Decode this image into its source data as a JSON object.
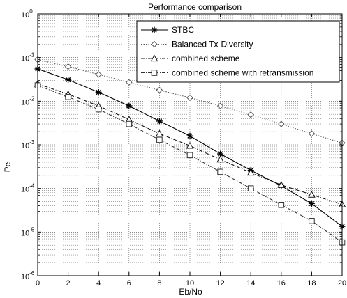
{
  "chart_data": {
    "type": "line",
    "title": "Performance comparison",
    "xlabel": "Eb/No",
    "ylabel": "Pe",
    "yscale": "log",
    "xlim": [
      0,
      20
    ],
    "ylim": [
      1e-06,
      1
    ],
    "grid": true,
    "legend_position": "top-right",
    "x_ticks": [
      "0",
      "2",
      "4",
      "6",
      "8",
      "10",
      "12",
      "14",
      "16",
      "18",
      "20"
    ],
    "y_ticks": [
      {
        "base": "10",
        "exp": "0"
      },
      {
        "base": "10",
        "exp": "-1"
      },
      {
        "base": "10",
        "exp": "-2"
      },
      {
        "base": "10",
        "exp": "-3"
      },
      {
        "base": "10",
        "exp": "-4"
      },
      {
        "base": "10",
        "exp": "-5"
      },
      {
        "base": "10",
        "exp": "-6"
      }
    ],
    "x": [
      0,
      2,
      4,
      6,
      8,
      10,
      12,
      14,
      16,
      18,
      20
    ],
    "series": [
      {
        "name": "STBC",
        "marker": "star",
        "dash": "solid",
        "color": "#000000",
        "values": [
          0.055,
          0.031,
          0.016,
          0.0078,
          0.0035,
          0.0016,
          0.00062,
          0.00026,
          0.000115,
          4.5e-05,
          1.35e-05
        ]
      },
      {
        "name": "Balanced Tx-Diversity",
        "marker": "diamond",
        "dash": "dotted",
        "color": "#555555",
        "values": [
          0.09,
          0.062,
          0.041,
          0.027,
          0.018,
          0.012,
          0.0078,
          0.0049,
          0.003,
          0.0018,
          0.0011
        ]
      },
      {
        "name": "combined scheme",
        "marker": "triangle",
        "dash": "dashdot",
        "color": "#111111",
        "values": [
          0.025,
          0.0145,
          0.0078,
          0.0038,
          0.0018,
          0.00095,
          0.00046,
          0.00023,
          0.00012,
          7.2e-05,
          4.3e-05
        ]
      },
      {
        "name": "combined scheme with retransmission",
        "marker": "square",
        "dash": "dashdot",
        "color": "#333333",
        "values": [
          0.023,
          0.0125,
          0.0065,
          0.003,
          0.0013,
          0.00058,
          0.00024,
          0.0001,
          4.2e-05,
          1.8e-05,
          5.8e-06
        ]
      }
    ]
  }
}
